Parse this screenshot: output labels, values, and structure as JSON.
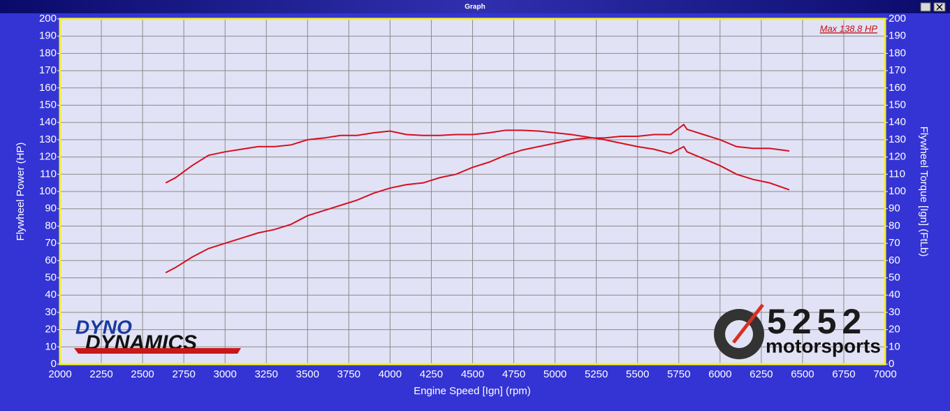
{
  "window_title": "Graph",
  "chart_data": {
    "type": "line",
    "annotation": "Max 138.8 HP",
    "xlabel": "Engine Speed [Ign] (rpm)",
    "ylabel": "Flywheel Power (HP)",
    "y2label": "Flywheel Torque [Ign] (FtLb)",
    "logos": [
      "DYNO",
      "DYNAMICS",
      "5252",
      "motorsports"
    ],
    "x": [
      2640,
      2700,
      2800,
      2900,
      3000,
      3100,
      3200,
      3300,
      3400,
      3500,
      3600,
      3700,
      3800,
      3900,
      4000,
      4100,
      4200,
      4300,
      4400,
      4500,
      4600,
      4700,
      4800,
      4900,
      5000,
      5100,
      5200,
      5300,
      5400,
      5500,
      5600,
      5700,
      5780,
      5800,
      5900,
      6000,
      6100,
      6200,
      6300,
      6420
    ],
    "series": [
      {
        "name": "Flywheel Power (HP)",
        "color": "#d4101e",
        "values": [
          53,
          56,
          62,
          67,
          70,
          73,
          76,
          78,
          81,
          86,
          89,
          92,
          95,
          99,
          102,
          104,
          105,
          108,
          110,
          114,
          117,
          121,
          124,
          126,
          128,
          130,
          131,
          131,
          132,
          132,
          133,
          133,
          138.8,
          136,
          133,
          130,
          126,
          125,
          125,
          123.5
        ]
      },
      {
        "name": "Flywheel Torque [Ign] (FtLb)",
        "color": "#d4101e",
        "axis": "y2",
        "values": [
          105,
          108,
          115,
          121,
          123,
          124.5,
          126,
          126,
          127,
          130,
          131,
          132.5,
          132.5,
          134,
          135,
          133,
          132.5,
          132.5,
          133,
          133,
          134,
          135.5,
          135.5,
          135,
          134,
          133,
          131.5,
          130,
          128,
          126,
          124.5,
          122,
          126,
          123,
          119,
          115,
          110,
          107,
          105,
          101
        ]
      }
    ],
    "xlim": [
      2000,
      7000
    ],
    "xticks": [
      2000,
      2250,
      2500,
      2750,
      3000,
      3250,
      3500,
      3750,
      4000,
      4250,
      4500,
      4750,
      5000,
      5250,
      5500,
      5750,
      6000,
      6250,
      6500,
      6750,
      7000
    ],
    "ylim": [
      0,
      200
    ],
    "yticks": [
      0,
      10,
      20,
      30,
      40,
      50,
      60,
      70,
      80,
      90,
      100,
      110,
      120,
      130,
      140,
      150,
      160,
      170,
      180,
      190,
      200
    ],
    "y2lim": [
      0,
      200
    ],
    "y2ticks": [
      0,
      10,
      20,
      30,
      40,
      50,
      60,
      70,
      80,
      90,
      100,
      110,
      120,
      130,
      140,
      150,
      160,
      170,
      180,
      190,
      200
    ],
    "grid": true
  }
}
